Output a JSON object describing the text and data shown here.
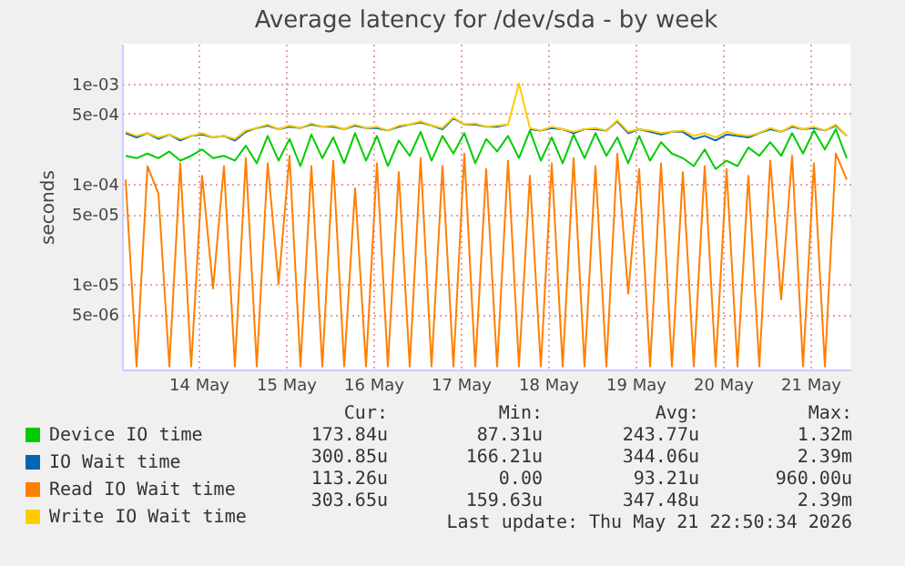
{
  "chart_data": {
    "type": "line",
    "title": "Average latency for /dev/sda - by week",
    "ylabel": "seconds",
    "x": [
      "2026-05-13T16:00",
      "2026-05-13T19:00",
      "2026-05-13T22:00",
      "2026-05-14T01:00",
      "2026-05-14T04:00",
      "2026-05-14T07:00",
      "2026-05-14T10:00",
      "2026-05-14T13:00",
      "2026-05-14T16:00",
      "2026-05-14T19:00",
      "2026-05-14T22:00",
      "2026-05-15T01:00",
      "2026-05-15T04:00",
      "2026-05-15T07:00",
      "2026-05-15T10:00",
      "2026-05-15T13:00",
      "2026-05-15T16:00",
      "2026-05-15T19:00",
      "2026-05-15T22:00",
      "2026-05-16T01:00",
      "2026-05-16T04:00",
      "2026-05-16T07:00",
      "2026-05-16T10:00",
      "2026-05-16T13:00",
      "2026-05-16T16:00",
      "2026-05-16T19:00",
      "2026-05-16T22:00",
      "2026-05-17T01:00",
      "2026-05-17T04:00",
      "2026-05-17T07:00",
      "2026-05-17T10:00",
      "2026-05-17T13:00",
      "2026-05-17T16:00",
      "2026-05-17T19:00",
      "2026-05-17T22:00",
      "2026-05-18T01:00",
      "2026-05-18T04:00",
      "2026-05-18T07:00",
      "2026-05-18T10:00",
      "2026-05-18T13:00",
      "2026-05-18T16:00",
      "2026-05-18T19:00",
      "2026-05-18T22:00",
      "2026-05-19T01:00",
      "2026-05-19T04:00",
      "2026-05-19T07:00",
      "2026-05-19T10:00",
      "2026-05-19T13:00",
      "2026-05-19T16:00",
      "2026-05-19T19:00",
      "2026-05-19T22:00",
      "2026-05-20T01:00",
      "2026-05-20T04:00",
      "2026-05-20T07:00",
      "2026-05-20T10:00",
      "2026-05-20T13:00",
      "2026-05-20T16:00",
      "2026-05-20T19:00",
      "2026-05-20T22:00",
      "2026-05-21T01:00",
      "2026-05-21T04:00",
      "2026-05-21T07:00",
      "2026-05-21T10:00",
      "2026-05-21T13:00",
      "2026-05-21T16:00",
      "2026-05-21T19:00",
      "2026-05-21T22:00"
    ],
    "xlim": [
      "2026-05-13T15:00",
      "2026-05-21T23:00"
    ],
    "xticks": [
      {
        "value": "2026-05-14T12:00",
        "label": "14 May"
      },
      {
        "value": "2026-05-15T12:00",
        "label": "15 May"
      },
      {
        "value": "2026-05-16T12:00",
        "label": "16 May"
      },
      {
        "value": "2026-05-17T12:00",
        "label": "17 May"
      },
      {
        "value": "2026-05-18T12:00",
        "label": "18 May"
      },
      {
        "value": "2026-05-19T12:00",
        "label": "19 May"
      },
      {
        "value": "2026-05-20T12:00",
        "label": "20 May"
      },
      {
        "value": "2026-05-21T12:00",
        "label": "21 May"
      }
    ],
    "ylim": [
      1.4e-06,
      0.0025
    ],
    "log": true,
    "yticks": [
      {
        "value": 5e-06,
        "label": "5e-06"
      },
      {
        "value": 1e-05,
        "label": "1e-05"
      },
      {
        "value": 5e-05,
        "label": "5e-05"
      },
      {
        "value": 0.0001,
        "label": "1e-04"
      },
      {
        "value": 0.0005,
        "label": "5e-04"
      },
      {
        "value": 0.001,
        "label": "1e-03"
      }
    ],
    "grid": true,
    "legend": "bottom",
    "series": [
      {
        "name": "Device IO time",
        "color": "#00cc00",
        "values": [
          0.00019,
          0.00018,
          0.0002,
          0.00018,
          0.00021,
          0.00017,
          0.00019,
          0.00022,
          0.00018,
          0.00019,
          0.00017,
          0.00024,
          0.00016,
          0.0003,
          0.00017,
          0.00028,
          0.00015,
          0.00031,
          0.00018,
          0.00029,
          0.00016,
          0.00032,
          0.00017,
          0.0003,
          0.00015,
          0.00027,
          0.00019,
          0.00033,
          0.00017,
          0.0003,
          0.0002,
          0.00032,
          0.00016,
          0.00028,
          0.00021,
          0.0003,
          0.00018,
          0.00034,
          0.00017,
          0.00029,
          0.00016,
          0.00031,
          0.00018,
          0.00032,
          0.00019,
          0.00029,
          0.00016,
          0.0003,
          0.00017,
          0.00026,
          0.0002,
          0.00018,
          0.00015,
          0.00022,
          0.00014,
          0.00017,
          0.00015,
          0.00023,
          0.00019,
          0.00026,
          0.00019,
          0.00032,
          0.0002,
          0.00034,
          0.00022,
          0.00035,
          0.00018
        ]
      },
      {
        "name": "IO Wait time",
        "color": "#0066b3",
        "values": [
          0.00032,
          0.00029,
          0.00032,
          0.00028,
          0.00031,
          0.00027,
          0.0003,
          0.00031,
          0.00029,
          0.0003,
          0.00027,
          0.00033,
          0.00036,
          0.00038,
          0.00035,
          0.00037,
          0.00036,
          0.00039,
          0.00037,
          0.00037,
          0.00035,
          0.00038,
          0.00036,
          0.00036,
          0.00034,
          0.00037,
          0.00039,
          0.00041,
          0.00038,
          0.00035,
          0.00045,
          0.00039,
          0.00039,
          0.00037,
          0.00037,
          0.00039,
          null,
          0.00035,
          0.00034,
          0.00036,
          0.00035,
          0.00032,
          0.00035,
          0.00035,
          0.00034,
          0.00042,
          0.00032,
          0.00035,
          0.00033,
          0.00031,
          0.00033,
          0.00033,
          0.00028,
          0.0003,
          0.00027,
          0.00031,
          0.0003,
          0.00029,
          0.00032,
          0.00035,
          0.00033,
          0.00037,
          0.00035,
          0.00036,
          0.00034,
          0.00038,
          0.0003
        ]
      },
      {
        "name": "Read IO Wait time",
        "color": "#ff7f00",
        "values": [
          0.00011,
          1.5e-06,
          0.00015,
          8e-05,
          1.5e-06,
          0.00016,
          1.5e-06,
          0.00012,
          9e-06,
          0.00015,
          1.5e-06,
          0.00018,
          1.5e-06,
          0.00016,
          1e-05,
          0.00019,
          1.5e-06,
          0.00015,
          1.5e-06,
          0.00017,
          1.5e-06,
          9e-05,
          1.5e-06,
          0.00016,
          1.5e-06,
          0.00013,
          1.5e-06,
          0.00018,
          1.5e-06,
          0.00015,
          1.5e-06,
          0.0002,
          1.5e-06,
          0.00014,
          1.5e-06,
          0.00017,
          1.5e-06,
          0.00012,
          1.5e-06,
          0.00016,
          1.5e-06,
          0.00018,
          1.5e-06,
          0.00015,
          1.5e-06,
          0.0002,
          8e-06,
          0.00014,
          1.5e-06,
          0.00016,
          1.5e-06,
          0.00013,
          1.5e-06,
          0.00015,
          1.5e-06,
          0.00014,
          1.5e-06,
          0.00012,
          1.5e-06,
          0.00017,
          7e-06,
          0.00019,
          1.5e-06,
          0.00016,
          1.5e-06,
          0.0002,
          0.00011
        ]
      },
      {
        "name": "Write IO Wait time",
        "color": "#ffcc00",
        "values": [
          0.00033,
          0.0003,
          0.00032,
          0.00029,
          0.00031,
          0.00028,
          0.0003,
          0.00032,
          0.00029,
          0.0003,
          0.00028,
          0.00034,
          0.00036,
          0.00039,
          0.00035,
          0.00038,
          0.00036,
          0.0004,
          0.00037,
          0.00038,
          0.00035,
          0.00039,
          0.00036,
          0.00037,
          0.00034,
          0.00038,
          0.00039,
          0.00042,
          0.00038,
          0.00036,
          0.00046,
          0.00039,
          0.0004,
          0.00037,
          0.00038,
          0.00039,
          0.001,
          0.00036,
          0.00034,
          0.00037,
          0.00035,
          0.00033,
          0.00035,
          0.00036,
          0.00034,
          0.00043,
          0.00033,
          0.00035,
          0.00034,
          0.00032,
          0.00033,
          0.00034,
          0.0003,
          0.00032,
          0.00029,
          0.00033,
          0.00031,
          0.0003,
          0.00032,
          0.00036,
          0.00033,
          0.00038,
          0.00035,
          0.00037,
          0.00034,
          0.00039,
          0.0003
        ]
      }
    ],
    "annotations": [
      "Cur:",
      "Min:",
      "Avg:",
      "Max:",
      "173.84u",
      "87.31u",
      "243.77u",
      "1.32m",
      "300.85u",
      "166.21u",
      "344.06u",
      "2.39m",
      "113.26u",
      "0.00",
      "93.21u",
      "960.00u",
      "303.65u",
      "159.63u",
      "347.48u",
      "2.39m",
      "Last update: Thu May 21 22:50:34 2026"
    ]
  }
}
